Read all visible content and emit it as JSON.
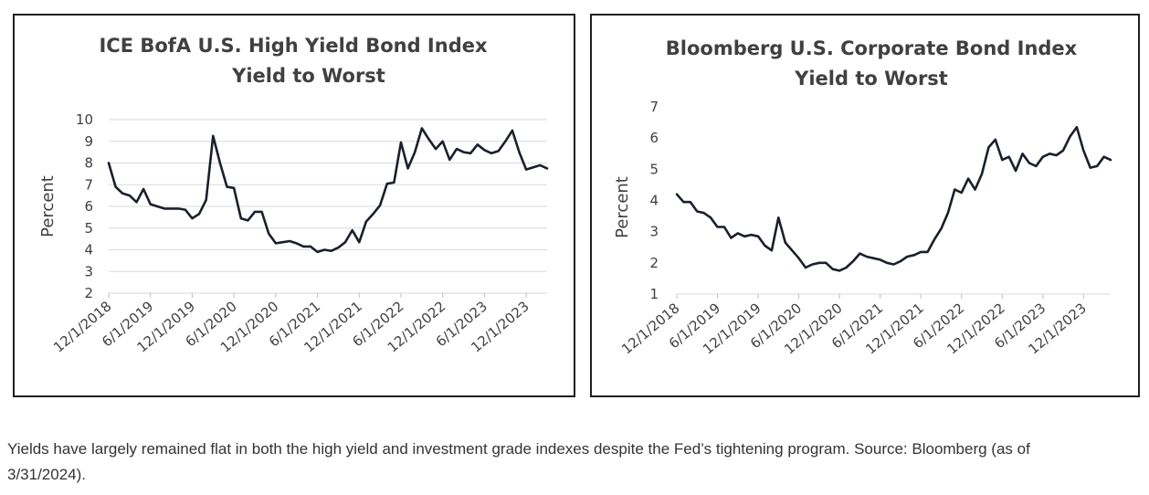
{
  "caption": "Yields have largely remained flat in both the high yield and investment grade indexes despite the Fed’s tightening program. Source: Bloomberg (as of 3/31/2024).",
  "chart_data": [
    {
      "type": "line",
      "title_lines": [
        "ICE BofA U.S. High Yield Bond Index",
        "Yield to Worst"
      ],
      "ylabel": "Percent",
      "xlabel": "",
      "ylim": [
        2,
        10
      ],
      "yticks": [
        2,
        3,
        4,
        5,
        6,
        7,
        8,
        9,
        10
      ],
      "grid": true,
      "line_color": "#1a1f2b",
      "x_tick_labels": [
        "12/1/2018",
        "6/1/2019",
        "12/1/2019",
        "6/1/2020",
        "12/1/2020",
        "6/1/2021",
        "12/1/2021",
        "6/1/2022",
        "12/1/2022",
        "6/1/2023",
        "12/1/2023"
      ],
      "x_start": "12/1/2018",
      "x_end": "3/1/2024",
      "series": [
        {
          "values": [
            8.0,
            6.9,
            6.6,
            6.5,
            6.2,
            6.8,
            6.1,
            6.0,
            5.9,
            5.9,
            5.9,
            5.85,
            5.45,
            5.65,
            6.3,
            9.25,
            8.0,
            6.9,
            6.85,
            5.45,
            5.35,
            5.75,
            5.75,
            4.75,
            4.3,
            4.35,
            4.4,
            4.3,
            4.15,
            4.15,
            3.9,
            4.0,
            3.95,
            4.1,
            4.35,
            4.9,
            4.35,
            5.3,
            5.65,
            6.05,
            7.05,
            7.1,
            8.95,
            7.75,
            8.5,
            9.6,
            9.1,
            8.65,
            9.0,
            8.15,
            8.65,
            8.5,
            8.45,
            8.85,
            8.6,
            8.45,
            8.55,
            9.0,
            9.5,
            8.5,
            7.7,
            7.8,
            7.9,
            7.75
          ]
        }
      ]
    },
    {
      "type": "line",
      "title_lines": [
        "Bloomberg U.S. Corporate Bond Index",
        "Yield to Worst"
      ],
      "ylabel": "Percent",
      "xlabel": "",
      "ylim": [
        1,
        7
      ],
      "yticks": [
        1,
        2,
        3,
        4,
        5,
        6,
        7
      ],
      "grid": false,
      "line_color": "#1a1f2b",
      "x_tick_labels": [
        "12/1/2018",
        "6/1/2019",
        "12/1/2019",
        "6/1/2020",
        "12/1/2020",
        "6/1/2021",
        "12/1/2021",
        "6/1/2022",
        "12/1/2022",
        "6/1/2023",
        "12/1/2023"
      ],
      "x_start": "12/1/2018",
      "x_end": "3/1/2024",
      "series": [
        {
          "values": [
            4.2,
            3.95,
            3.95,
            3.65,
            3.6,
            3.45,
            3.15,
            3.15,
            2.8,
            2.95,
            2.85,
            2.9,
            2.85,
            2.55,
            2.4,
            3.45,
            2.65,
            2.4,
            2.15,
            1.85,
            1.95,
            2.0,
            2.0,
            1.8,
            1.75,
            1.85,
            2.05,
            2.3,
            2.2,
            2.15,
            2.1,
            2.0,
            1.95,
            2.05,
            2.2,
            2.25,
            2.35,
            2.35,
            2.75,
            3.1,
            3.6,
            4.35,
            4.25,
            4.7,
            4.35,
            4.85,
            5.7,
            5.95,
            5.3,
            5.4,
            4.95,
            5.5,
            5.2,
            5.1,
            5.4,
            5.5,
            5.45,
            5.6,
            6.05,
            6.35,
            5.6,
            5.05,
            5.1,
            5.4,
            5.3
          ]
        }
      ]
    }
  ]
}
